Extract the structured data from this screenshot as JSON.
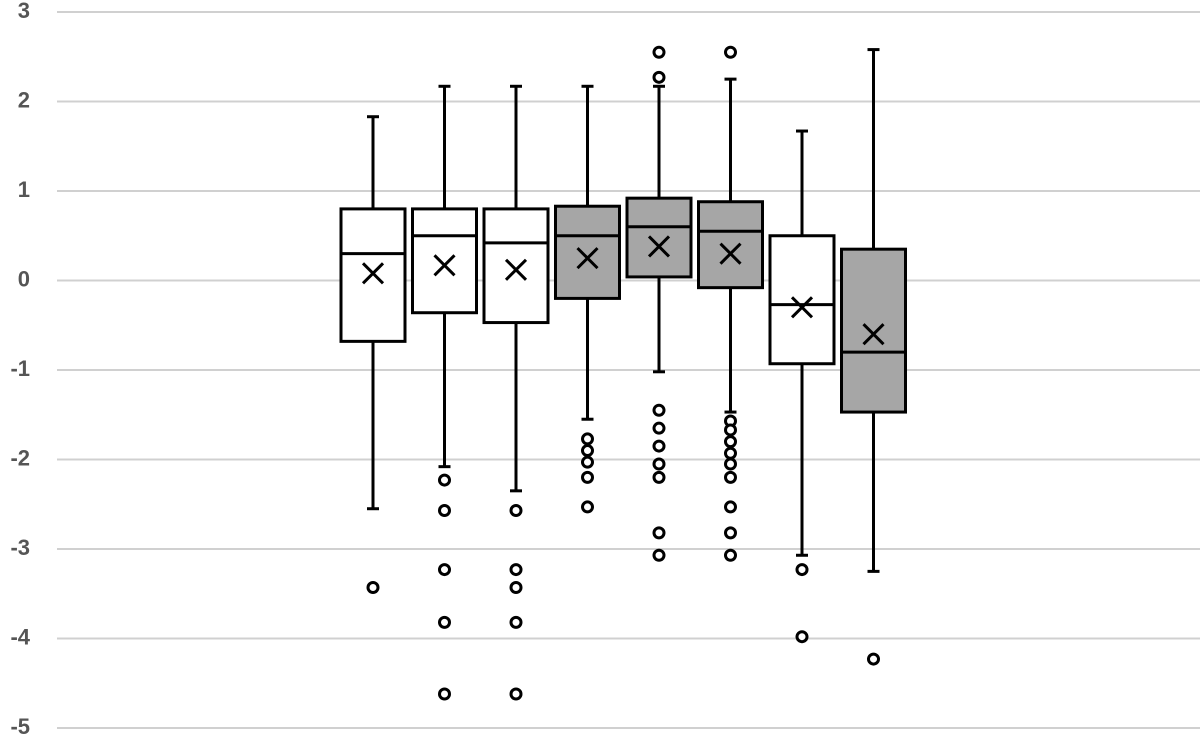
{
  "chart_data": {
    "type": "box",
    "ylim": [
      -5,
      3
    ],
    "yticks": [
      -5,
      -4,
      -3,
      -2,
      -1,
      0,
      1,
      2,
      3
    ],
    "grid": true,
    "boxes": [
      {
        "color": "#ffffff",
        "whisker_low": -2.55,
        "q1": -0.68,
        "median": 0.3,
        "q3": 0.8,
        "whisker_high": 1.83,
        "mean": 0.08,
        "outliers": [
          -3.43
        ]
      },
      {
        "color": "#ffffff",
        "whisker_low": -2.08,
        "q1": -0.36,
        "median": 0.5,
        "q3": 0.8,
        "whisker_high": 2.17,
        "mean": 0.17,
        "outliers": [
          -2.23,
          -2.57,
          -3.23,
          -3.82,
          -4.62
        ]
      },
      {
        "color": "#ffffff",
        "whisker_low": -2.35,
        "q1": -0.47,
        "median": 0.42,
        "q3": 0.8,
        "whisker_high": 2.17,
        "mean": 0.12,
        "outliers": [
          -2.57,
          -3.23,
          -3.43,
          -3.82,
          -4.62
        ]
      },
      {
        "color": "#a6a6a6",
        "whisker_low": -1.55,
        "q1": -0.2,
        "median": 0.5,
        "q3": 0.83,
        "whisker_high": 2.17,
        "mean": 0.25,
        "outliers": [
          -1.77,
          -1.9,
          -2.03,
          -2.2,
          -2.53
        ]
      },
      {
        "color": "#a6a6a6",
        "whisker_low": -1.02,
        "q1": 0.04,
        "median": 0.6,
        "q3": 0.92,
        "whisker_high": 2.17,
        "mean": 0.38,
        "outliers": [
          2.55,
          2.27,
          -1.45,
          -1.65,
          -1.85,
          -2.05,
          -2.2,
          -2.82,
          -3.07
        ]
      },
      {
        "color": "#a6a6a6",
        "whisker_low": -1.47,
        "q1": -0.08,
        "median": 0.55,
        "q3": 0.88,
        "whisker_high": 2.25,
        "mean": 0.3,
        "outliers": [
          2.55,
          -1.57,
          -1.67,
          -1.8,
          -1.93,
          -2.05,
          -2.2,
          -2.53,
          -2.82,
          -3.07
        ]
      },
      {
        "color": "#ffffff",
        "whisker_low": -3.07,
        "q1": -0.93,
        "median": -0.27,
        "q3": 0.5,
        "whisker_high": 1.67,
        "mean": -0.3,
        "outliers": [
          -3.23,
          -3.98
        ]
      },
      {
        "color": "#a6a6a6",
        "whisker_low": -3.25,
        "q1": -1.47,
        "median": -0.8,
        "q3": 0.35,
        "whisker_high": 2.58,
        "mean": -0.6,
        "outliers": [
          -4.23
        ]
      }
    ]
  }
}
